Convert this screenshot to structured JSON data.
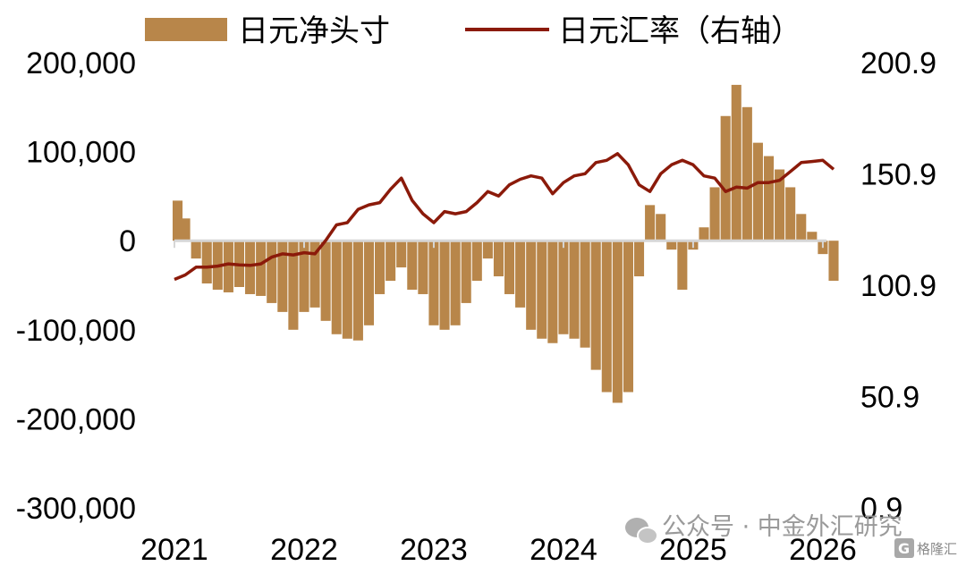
{
  "chart_data": {
    "type": "bar+line",
    "title": "",
    "legend": [
      {
        "name": "日元净头寸",
        "kind": "bar",
        "color": "#B8864A"
      },
      {
        "name": "日元汇率（右轴）",
        "kind": "line",
        "color": "#8B1A0A"
      }
    ],
    "legend_placement": "top",
    "x_axis": {
      "type": "date",
      "ticks": [
        "2021",
        "2022",
        "2023",
        "2024",
        "2025",
        "2026"
      ],
      "range": [
        "2021-01",
        "2026-02"
      ]
    },
    "y_left": {
      "min": -300000,
      "max": 200000,
      "ticks": [
        "200,000",
        "100,000",
        "0",
        "-100,000",
        "-200,000",
        "-300,000"
      ]
    },
    "y_right": {
      "min": 0.9,
      "max": 200.9,
      "ticks": [
        "200.9",
        "150.9",
        "100.9",
        "50.9",
        "0.9"
      ]
    },
    "grid": false,
    "series": [
      {
        "name": "日元净头寸",
        "kind": "bar",
        "points": [
          [
            "2021-01",
            45000
          ],
          [
            "2021-02",
            25000
          ],
          [
            "2021-03",
            -20000
          ],
          [
            "2021-04",
            -48000
          ],
          [
            "2021-05",
            -55000
          ],
          [
            "2021-06",
            -58000
          ],
          [
            "2021-07",
            -52000
          ],
          [
            "2021-08",
            -60000
          ],
          [
            "2021-09",
            -62000
          ],
          [
            "2021-10",
            -70000
          ],
          [
            "2021-11",
            -80000
          ],
          [
            "2021-12",
            -100000
          ],
          [
            "2022-01",
            -80000
          ],
          [
            "2022-02",
            -75000
          ],
          [
            "2022-03",
            -90000
          ],
          [
            "2022-04",
            -105000
          ],
          [
            "2022-05",
            -110000
          ],
          [
            "2022-06",
            -112000
          ],
          [
            "2022-07",
            -95000
          ],
          [
            "2022-08",
            -60000
          ],
          [
            "2022-09",
            -45000
          ],
          [
            "2022-10",
            -30000
          ],
          [
            "2022-11",
            -55000
          ],
          [
            "2022-12",
            -60000
          ],
          [
            "2023-01",
            -95000
          ],
          [
            "2023-02",
            -100000
          ],
          [
            "2023-03",
            -95000
          ],
          [
            "2023-04",
            -70000
          ],
          [
            "2023-05",
            -45000
          ],
          [
            "2023-06",
            -20000
          ],
          [
            "2023-07",
            -40000
          ],
          [
            "2023-08",
            -60000
          ],
          [
            "2023-09",
            -75000
          ],
          [
            "2023-10",
            -100000
          ],
          [
            "2023-11",
            -110000
          ],
          [
            "2023-12",
            -115000
          ],
          [
            "2024-01",
            -105000
          ],
          [
            "2024-02",
            -110000
          ],
          [
            "2024-03",
            -120000
          ],
          [
            "2024-04",
            -145000
          ],
          [
            "2024-05",
            -170000
          ],
          [
            "2024-06",
            -182000
          ],
          [
            "2024-07",
            -170000
          ],
          [
            "2024-08",
            -40000
          ],
          [
            "2024-09",
            40000
          ],
          [
            "2024-10",
            30000
          ],
          [
            "2024-11",
            -10000
          ],
          [
            "2024-12",
            -55000
          ],
          [
            "2025-01",
            -10000
          ],
          [
            "2025-02",
            15000
          ],
          [
            "2025-03",
            60000
          ],
          [
            "2025-04",
            140000
          ],
          [
            "2025-05",
            175000
          ],
          [
            "2025-06",
            150000
          ],
          [
            "2025-07",
            110000
          ],
          [
            "2025-08",
            95000
          ],
          [
            "2025-09",
            80000
          ],
          [
            "2025-10",
            60000
          ],
          [
            "2025-11",
            30000
          ],
          [
            "2025-12",
            10000
          ],
          [
            "2026-01",
            -15000
          ],
          [
            "2026-02",
            -45000
          ]
        ]
      },
      {
        "name": "日元汇率（右轴）",
        "kind": "line",
        "points": [
          [
            "2021-01",
            103.5
          ],
          [
            "2021-02",
            105.5
          ],
          [
            "2021-03",
            109
          ],
          [
            "2021-04",
            109
          ],
          [
            "2021-05",
            109.5
          ],
          [
            "2021-06",
            110.5
          ],
          [
            "2021-07",
            110
          ],
          [
            "2021-08",
            109.8
          ],
          [
            "2021-09",
            110.5
          ],
          [
            "2021-10",
            113.5
          ],
          [
            "2021-11",
            115
          ],
          [
            "2021-12",
            114.5
          ],
          [
            "2022-01",
            115.5
          ],
          [
            "2022-02",
            115
          ],
          [
            "2022-03",
            121
          ],
          [
            "2022-04",
            128
          ],
          [
            "2022-05",
            129
          ],
          [
            "2022-06",
            135
          ],
          [
            "2022-07",
            137
          ],
          [
            "2022-08",
            138
          ],
          [
            "2022-09",
            144
          ],
          [
            "2022-10",
            149
          ],
          [
            "2022-11",
            139
          ],
          [
            "2022-12",
            133
          ],
          [
            "2023-01",
            129
          ],
          [
            "2023-02",
            134
          ],
          [
            "2023-03",
            133
          ],
          [
            "2023-04",
            134
          ],
          [
            "2023-05",
            138
          ],
          [
            "2023-06",
            143
          ],
          [
            "2023-07",
            141
          ],
          [
            "2023-08",
            146
          ],
          [
            "2023-09",
            148.5
          ],
          [
            "2023-10",
            150
          ],
          [
            "2023-11",
            149
          ],
          [
            "2023-12",
            142
          ],
          [
            "2024-01",
            147
          ],
          [
            "2024-02",
            150
          ],
          [
            "2024-03",
            151
          ],
          [
            "2024-04",
            156
          ],
          [
            "2024-05",
            157
          ],
          [
            "2024-06",
            160
          ],
          [
            "2024-07",
            155
          ],
          [
            "2024-08",
            146
          ],
          [
            "2024-09",
            143
          ],
          [
            "2024-10",
            151
          ],
          [
            "2024-11",
            155
          ],
          [
            "2024-12",
            157
          ],
          [
            "2025-01",
            155
          ],
          [
            "2025-02",
            150
          ],
          [
            "2025-03",
            149
          ],
          [
            "2025-04",
            143
          ],
          [
            "2025-05",
            145
          ],
          [
            "2025-06",
            144.5
          ],
          [
            "2025-07",
            147
          ],
          [
            "2025-08",
            147
          ],
          [
            "2025-09",
            148
          ],
          [
            "2025-10",
            152
          ],
          [
            "2025-11",
            156
          ],
          [
            "2025-12",
            156.5
          ],
          [
            "2026-01",
            157
          ],
          [
            "2026-02",
            153
          ]
        ]
      }
    ]
  },
  "watermark": {
    "text": "公众号 · 中金外汇研究",
    "icon": "wechat-icon",
    "logo_text": "格隆汇",
    "logo_mark": "G"
  }
}
